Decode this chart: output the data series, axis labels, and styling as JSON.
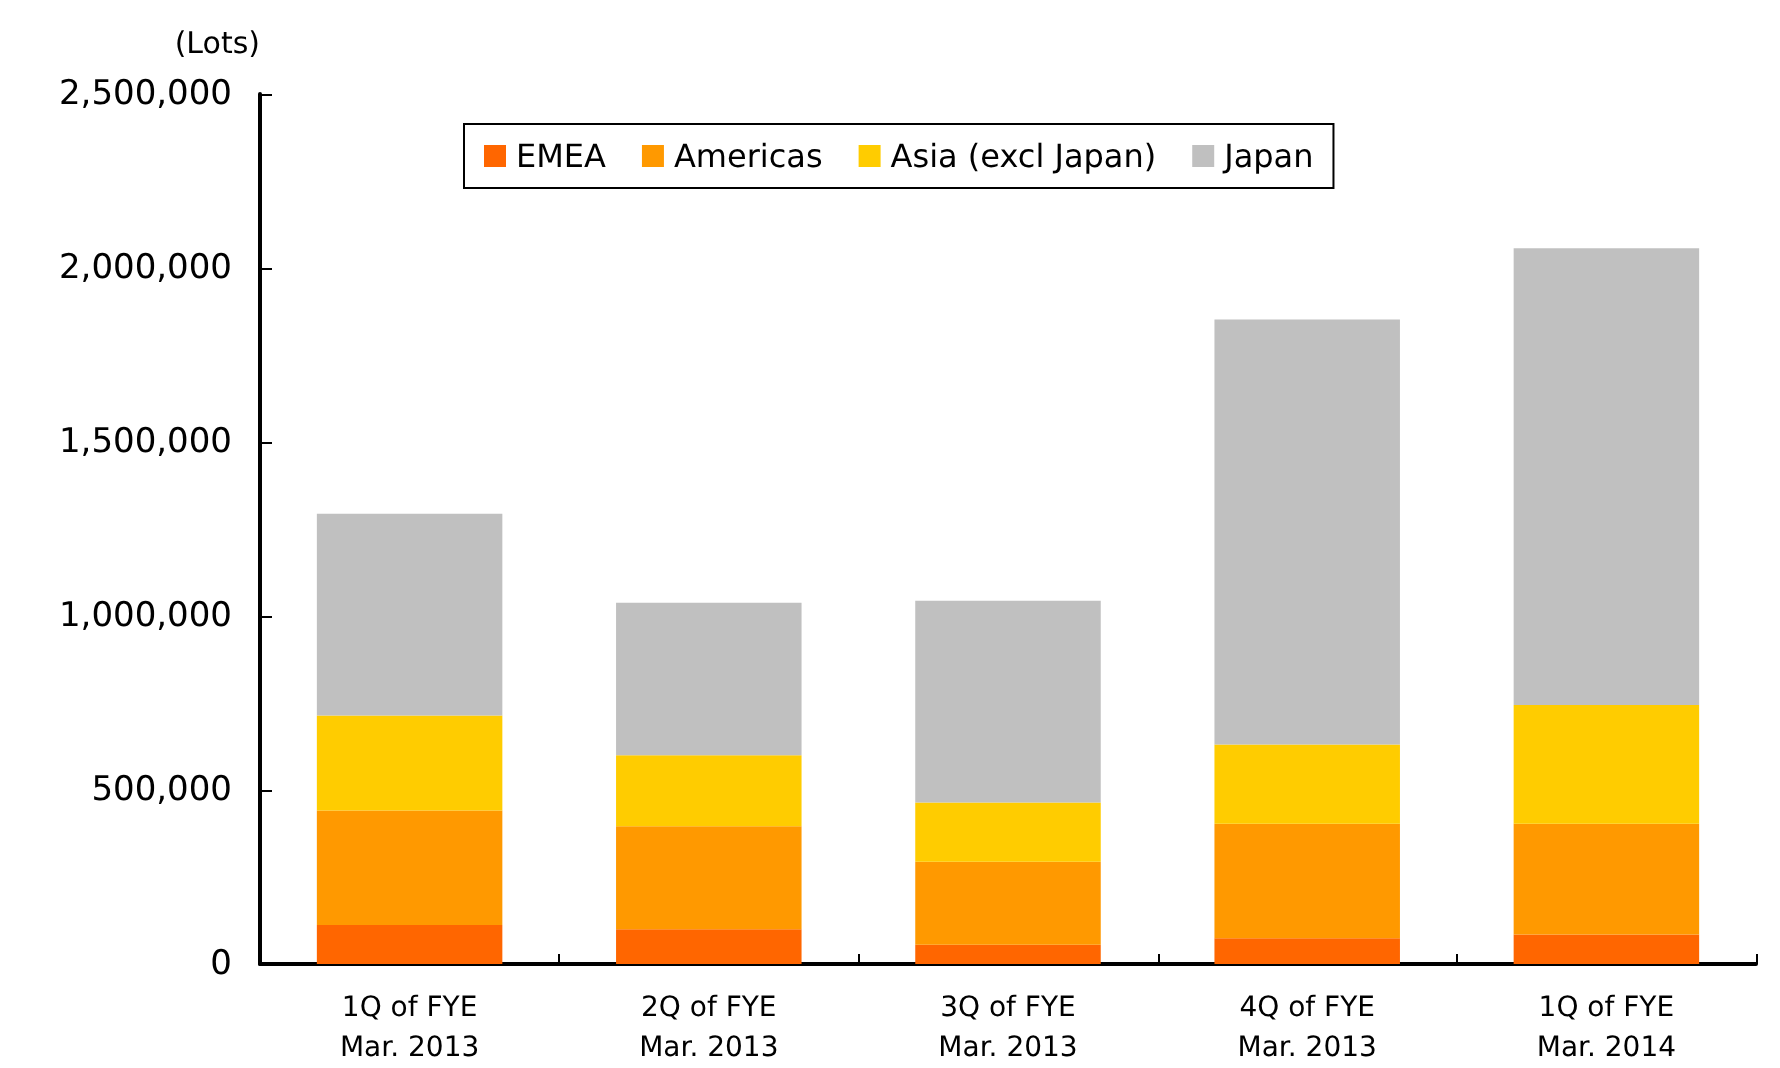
{
  "chart_data": {
    "type": "bar",
    "stacked": true,
    "ylabel": "(Lots)",
    "categories": [
      "1Q of FYE\nMar. 2013",
      "2Q of FYE\nMar. 2013",
      "3Q of FYE\nMar. 2013",
      "4Q of FYE\nMar. 2013",
      "1Q of FYE\nMar. 2014"
    ],
    "series": [
      {
        "name": "EMEA",
        "color": "#ff6600",
        "values": [
          112000,
          100000,
          55000,
          74000,
          85000
        ]
      },
      {
        "name": "Americas",
        "color": "#ff9900",
        "values": [
          329000,
          296000,
          239000,
          329000,
          318000
        ]
      },
      {
        "name": "Asia (excl Japan)",
        "color": "#ffcc00",
        "values": [
          273000,
          204000,
          170000,
          228000,
          341000
        ]
      },
      {
        "name": "Japan",
        "color": "#c0c0c0",
        "values": [
          580000,
          438000,
          580000,
          1221000,
          1313000
        ]
      }
    ],
    "ylim": [
      0,
      2500000
    ],
    "yticks": [
      0,
      {
        "value": 500000,
        "label": "500,000"
      },
      {
        "value": 1000000,
        "label": "1,000,000"
      },
      {
        "value": 1500000,
        "label": "1,500,000"
      },
      {
        "value": 2000000,
        "label": "2,000,000"
      },
      {
        "value": 2500000,
        "label": "2,500,000"
      }
    ],
    "grid": false,
    "legend": "top"
  }
}
